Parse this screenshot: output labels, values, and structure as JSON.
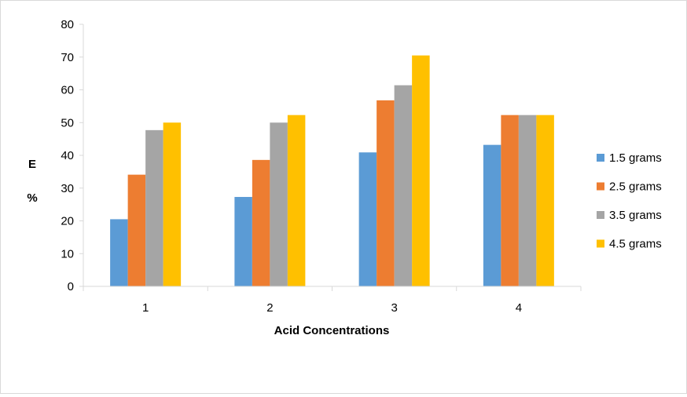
{
  "chart_data": {
    "type": "bar",
    "title": "",
    "xlabel": "Acid Concentrations",
    "ylabel_line1": "E",
    "ylabel_line2": "%",
    "categories": [
      "1",
      "2",
      "3",
      "4"
    ],
    "ylim": [
      0,
      80
    ],
    "yticks": [
      "0",
      "10",
      "20",
      "30",
      "40",
      "50",
      "60",
      "70",
      "80"
    ],
    "grid": false,
    "legend_position": "right",
    "series": [
      {
        "name": "1.5 grams",
        "color": "#5b9bd5",
        "values": [
          20.5,
          27.3,
          40.9,
          43.2
        ]
      },
      {
        "name": "2.5 grams",
        "color": "#ed7d31",
        "values": [
          34.1,
          38.6,
          56.8,
          52.3
        ]
      },
      {
        "name": "3.5 grams",
        "color": "#a5a5a5",
        "values": [
          47.7,
          50.0,
          61.4,
          52.3
        ]
      },
      {
        "name": "4.5 grams",
        "color": "#ffc000",
        "values": [
          50.0,
          52.3,
          70.5,
          52.3
        ]
      }
    ]
  }
}
